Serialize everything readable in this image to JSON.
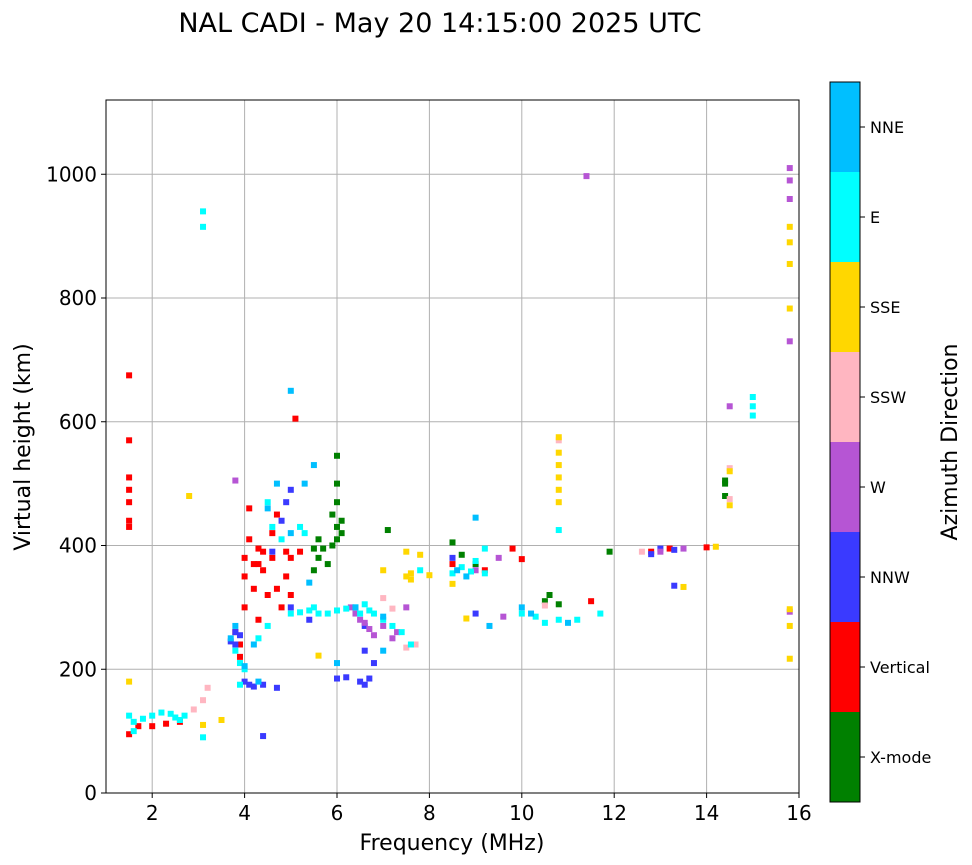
{
  "chart_data": {
    "type": "scatter",
    "title": "NAL CADI - May 20 14:15:00 2025 UTC",
    "xlabel": "Frequency (MHz)",
    "ylabel": "Virtual height (km)",
    "xlim": [
      1,
      16
    ],
    "ylim": [
      0,
      1120
    ],
    "xticks": [
      2,
      4,
      6,
      8,
      10,
      12,
      14,
      16
    ],
    "yticks": [
      0,
      200,
      400,
      600,
      800,
      1000
    ],
    "grid": true,
    "colorbar": {
      "label": "Azimuth Direction",
      "categories": [
        "X-mode",
        "Vertical",
        "NNW",
        "W",
        "SSW",
        "SSE",
        "E",
        "NNE"
      ],
      "colors": [
        "#008000",
        "#ff0000",
        "#3a3aff",
        "#b655d4",
        "#ffb6c1",
        "#ffd700",
        "#00ffff",
        "#00bfff"
      ]
    },
    "series": [
      {
        "name": "X-mode",
        "points": [
          [
            5.5,
            360
          ],
          [
            5.6,
            380
          ],
          [
            5.7,
            395
          ],
          [
            5.8,
            370
          ],
          [
            5.9,
            400
          ],
          [
            6.0,
            410
          ],
          [
            6.0,
            430
          ],
          [
            6.0,
            470
          ],
          [
            6.0,
            500
          ],
          [
            5.9,
            450
          ],
          [
            6.0,
            545
          ],
          [
            5.5,
            395
          ],
          [
            5.6,
            410
          ],
          [
            6.1,
            420
          ],
          [
            6.1,
            440
          ],
          [
            8.5,
            405
          ],
          [
            8.7,
            385
          ],
          [
            9.0,
            370
          ],
          [
            10.5,
            310
          ],
          [
            10.6,
            320
          ],
          [
            10.8,
            305
          ],
          [
            11.9,
            390
          ],
          [
            14.4,
            500
          ],
          [
            14.4,
            480
          ],
          [
            14.4,
            505
          ],
          [
            7.1,
            425
          ]
        ]
      },
      {
        "name": "Vertical",
        "points": [
          [
            1.5,
            675
          ],
          [
            1.5,
            570
          ],
          [
            1.5,
            510
          ],
          [
            1.5,
            490
          ],
          [
            1.5,
            470
          ],
          [
            1.5,
            440
          ],
          [
            1.5,
            430
          ],
          [
            1.5,
            95
          ],
          [
            1.7,
            108
          ],
          [
            2.0,
            108
          ],
          [
            2.3,
            112
          ],
          [
            2.6,
            115
          ],
          [
            3.8,
            260
          ],
          [
            3.9,
            240
          ],
          [
            3.9,
            220
          ],
          [
            4.0,
            300
          ],
          [
            4.0,
            350
          ],
          [
            4.0,
            380
          ],
          [
            4.1,
            410
          ],
          [
            4.2,
            370
          ],
          [
            4.1,
            460
          ],
          [
            4.2,
            330
          ],
          [
            4.3,
            280
          ],
          [
            4.4,
            360
          ],
          [
            4.5,
            320
          ],
          [
            4.6,
            380
          ],
          [
            4.7,
            330
          ],
          [
            4.8,
            300
          ],
          [
            4.9,
            350
          ],
          [
            5.0,
            320
          ],
          [
            4.6,
            420
          ],
          [
            4.7,
            450
          ],
          [
            5.0,
            380
          ],
          [
            5.2,
            390
          ],
          [
            4.3,
            395
          ],
          [
            4.4,
            390
          ],
          [
            4.9,
            390
          ],
          [
            4.3,
            370
          ],
          [
            5.1,
            605
          ],
          [
            8.5,
            370
          ],
          [
            9.2,
            360
          ],
          [
            9.8,
            395
          ],
          [
            10.0,
            378
          ],
          [
            11.5,
            310
          ],
          [
            12.8,
            390
          ],
          [
            13.2,
            395
          ],
          [
            14.0,
            397
          ]
        ]
      },
      {
        "name": "NNW",
        "points": [
          [
            3.8,
            240
          ],
          [
            3.9,
            255
          ],
          [
            3.8,
            260
          ],
          [
            3.7,
            245
          ],
          [
            4.0,
            180
          ],
          [
            4.1,
            175
          ],
          [
            4.2,
            172
          ],
          [
            4.4,
            175
          ],
          [
            4.7,
            170
          ],
          [
            5.4,
            280
          ],
          [
            6.0,
            185
          ],
          [
            6.2,
            187
          ],
          [
            6.5,
            180
          ],
          [
            6.6,
            175
          ],
          [
            6.7,
            185
          ],
          [
            6.6,
            230
          ],
          [
            6.6,
            270
          ],
          [
            6.8,
            210
          ],
          [
            4.8,
            440
          ],
          [
            4.9,
            470
          ],
          [
            5.0,
            490
          ],
          [
            5.0,
            300
          ],
          [
            4.6,
            390
          ],
          [
            4.4,
            92
          ],
          [
            8.5,
            380
          ],
          [
            9.0,
            290
          ],
          [
            13.0,
            395
          ],
          [
            13.3,
            393
          ],
          [
            13.3,
            335
          ],
          [
            12.8,
            386
          ]
        ]
      },
      {
        "name": "W",
        "points": [
          [
            3.8,
            505
          ],
          [
            6.3,
            300
          ],
          [
            6.4,
            290
          ],
          [
            6.5,
            280
          ],
          [
            6.6,
            275
          ],
          [
            6.7,
            265
          ],
          [
            6.8,
            255
          ],
          [
            7.0,
            270
          ],
          [
            7.2,
            250
          ],
          [
            7.3,
            260
          ],
          [
            7.5,
            300
          ],
          [
            9.0,
            360
          ],
          [
            9.5,
            380
          ],
          [
            9.6,
            285
          ],
          [
            13.0,
            390
          ],
          [
            13.5,
            395
          ],
          [
            14.5,
            625
          ],
          [
            15.8,
            1010
          ],
          [
            15.8,
            990
          ],
          [
            15.8,
            960
          ],
          [
            15.8,
            730
          ],
          [
            11.4,
            997
          ],
          [
            15.8,
            293
          ]
        ]
      },
      {
        "name": "SSW",
        "points": [
          [
            2.9,
            135
          ],
          [
            3.1,
            150
          ],
          [
            3.2,
            170
          ],
          [
            7.0,
            315
          ],
          [
            7.2,
            298
          ],
          [
            7.5,
            235
          ],
          [
            7.7,
            240
          ],
          [
            10.5,
            303
          ],
          [
            10.8,
            570
          ],
          [
            12.6,
            390
          ],
          [
            14.5,
            475
          ],
          [
            14.5,
            525
          ]
        ]
      },
      {
        "name": "SSE",
        "points": [
          [
            1.5,
            180
          ],
          [
            2.8,
            480
          ],
          [
            3.1,
            110
          ],
          [
            3.5,
            118
          ],
          [
            5.6,
            222
          ],
          [
            7.0,
            360
          ],
          [
            7.5,
            390
          ],
          [
            7.5,
            350
          ],
          [
            7.6,
            355
          ],
          [
            7.6,
            345
          ],
          [
            7.8,
            385
          ],
          [
            8.0,
            352
          ],
          [
            8.5,
            338
          ],
          [
            8.8,
            282
          ],
          [
            10.8,
            470
          ],
          [
            10.8,
            490
          ],
          [
            10.8,
            510
          ],
          [
            10.8,
            530
          ],
          [
            10.8,
            550
          ],
          [
            10.8,
            575
          ],
          [
            13.5,
            333
          ],
          [
            14.2,
            398
          ],
          [
            14.5,
            465
          ],
          [
            14.5,
            520
          ],
          [
            15.8,
            915
          ],
          [
            15.8,
            890
          ],
          [
            15.8,
            855
          ],
          [
            15.8,
            783
          ],
          [
            15.8,
            297
          ],
          [
            15.8,
            270
          ],
          [
            15.8,
            217
          ]
        ]
      },
      {
        "name": "E",
        "points": [
          [
            1.5,
            125
          ],
          [
            1.6,
            100
          ],
          [
            1.6,
            115
          ],
          [
            1.8,
            120
          ],
          [
            2.0,
            125
          ],
          [
            2.2,
            130
          ],
          [
            2.4,
            128
          ],
          [
            2.5,
            122
          ],
          [
            2.6,
            118
          ],
          [
            2.7,
            125
          ],
          [
            3.1,
            90
          ],
          [
            3.1,
            940
          ],
          [
            3.1,
            915
          ],
          [
            3.8,
            230
          ],
          [
            4.0,
            200
          ],
          [
            3.9,
            210
          ],
          [
            3.9,
            175
          ],
          [
            4.5,
            470
          ],
          [
            4.6,
            430
          ],
          [
            4.8,
            410
          ],
          [
            5.0,
            290
          ],
          [
            5.2,
            292
          ],
          [
            5.4,
            295
          ],
          [
            5.5,
            300
          ],
          [
            5.6,
            290
          ],
          [
            5.8,
            290
          ],
          [
            6.0,
            295
          ],
          [
            6.2,
            298
          ],
          [
            6.4,
            300
          ],
          [
            6.5,
            290
          ],
          [
            6.6,
            305
          ],
          [
            6.7,
            295
          ],
          [
            6.8,
            290
          ],
          [
            7.0,
            280
          ],
          [
            7.2,
            270
          ],
          [
            7.4,
            260
          ],
          [
            7.6,
            240
          ],
          [
            7.8,
            360
          ],
          [
            8.5,
            355
          ],
          [
            8.7,
            365
          ],
          [
            8.9,
            358
          ],
          [
            9.0,
            375
          ],
          [
            9.2,
            355
          ],
          [
            9.2,
            395
          ],
          [
            10.0,
            290
          ],
          [
            10.3,
            285
          ],
          [
            10.5,
            275
          ],
          [
            10.8,
            280
          ],
          [
            10.8,
            425
          ],
          [
            11.2,
            280
          ],
          [
            11.7,
            290
          ],
          [
            15.0,
            640
          ],
          [
            15.0,
            625
          ],
          [
            15.0,
            610
          ],
          [
            4.3,
            250
          ],
          [
            4.5,
            270
          ],
          [
            5.2,
            430
          ],
          [
            5.3,
            420
          ]
        ]
      },
      {
        "name": "NNE",
        "points": [
          [
            3.7,
            250
          ],
          [
            3.8,
            270
          ],
          [
            4.0,
            205
          ],
          [
            4.2,
            240
          ],
          [
            4.3,
            180
          ],
          [
            4.5,
            460
          ],
          [
            4.7,
            500
          ],
          [
            5.0,
            420
          ],
          [
            5.0,
            650
          ],
          [
            5.3,
            500
          ],
          [
            5.5,
            530
          ],
          [
            6.0,
            210
          ],
          [
            6.4,
            300
          ],
          [
            7.0,
            285
          ],
          [
            7.0,
            230
          ],
          [
            8.6,
            360
          ],
          [
            8.8,
            350
          ],
          [
            9.0,
            445
          ],
          [
            9.3,
            270
          ],
          [
            10.0,
            300
          ],
          [
            10.2,
            290
          ],
          [
            11.0,
            275
          ],
          [
            5.4,
            340
          ]
        ]
      }
    ]
  }
}
